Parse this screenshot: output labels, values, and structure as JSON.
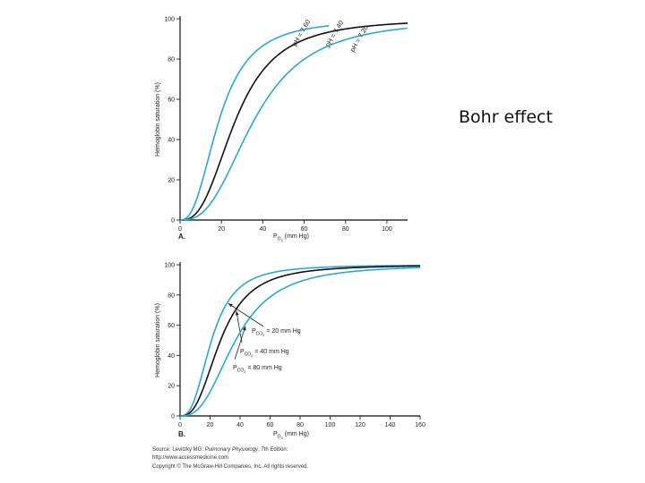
{
  "slide": {
    "title": "Bohr effect"
  },
  "colors": {
    "blue": "#29a8d8",
    "black": "#111111",
    "axis": "#333333"
  },
  "chart_data": [
    {
      "type": "line",
      "panel_label": "A.",
      "ylabel": "Hemoglobin saturation (%)",
      "xlabel_main": "P",
      "xlabel_sub": "O",
      "xlabel_sub2": "2",
      "xlabel_unit": "(mm Hg)",
      "xlim": [
        0,
        110
      ],
      "ylim": [
        0,
        100
      ],
      "xticks": [
        0,
        20,
        40,
        60,
        80,
        100
      ],
      "yticks": [
        0,
        20,
        40,
        60,
        80,
        100
      ],
      "series": [
        {
          "name": "pH = 7.60",
          "color": "blue",
          "p50": 19,
          "n": 2.5,
          "xmax": 72
        },
        {
          "name": "pH = 7.40",
          "color": "black",
          "p50": 27,
          "n": 2.7,
          "xmax": 110
        },
        {
          "name": "pH = 7.20",
          "color": "blue",
          "p50": 36,
          "n": 2.7,
          "xmax": 110
        }
      ]
    },
    {
      "type": "line",
      "panel_label": "B.",
      "ylabel": "Hemoglobin saturation (%)",
      "xlabel_main": "P",
      "xlabel_sub": "O",
      "xlabel_sub2": "2",
      "xlabel_unit": "(mm Hg)",
      "xlim": [
        0,
        160
      ],
      "ylim": [
        0,
        100
      ],
      "xticks": [
        0,
        20,
        40,
        60,
        80,
        100,
        120,
        140,
        160
      ],
      "yticks": [
        0,
        20,
        40,
        60,
        80,
        100
      ],
      "series": [
        {
          "name": "PCO2 = 20 mm Hg",
          "label_main": "P",
          "label_sub": "CO",
          "label_sub2": "2",
          "label_rest": " = 20 mm Hg",
          "color": "blue",
          "p50": 21,
          "n": 2.7,
          "xmax": 160
        },
        {
          "name": "PCO2 = 40 mm Hg",
          "label_main": "P",
          "label_sub": "CO",
          "label_sub2": "2",
          "label_rest": " = 40 mm Hg",
          "color": "black",
          "p50": 27,
          "n": 2.7,
          "xmax": 160
        },
        {
          "name": "PCO2 = 80 mm Hg",
          "label_main": "P",
          "label_sub": "CO",
          "label_sub2": "2",
          "label_rest": " = 80 mm Hg",
          "color": "blue",
          "p50": 37,
          "n": 2.7,
          "xmax": 160
        }
      ]
    }
  ],
  "credits": {
    "source_prefix": "Source: Levitzky MG: ",
    "source_title": "Pulmonary Physiology",
    "source_suffix": ", 7th Edition:",
    "url": "http://www.accessmedicine.com",
    "copyright": "Copyright © The McGraw-Hill Companies, Inc. All rights reserved."
  }
}
